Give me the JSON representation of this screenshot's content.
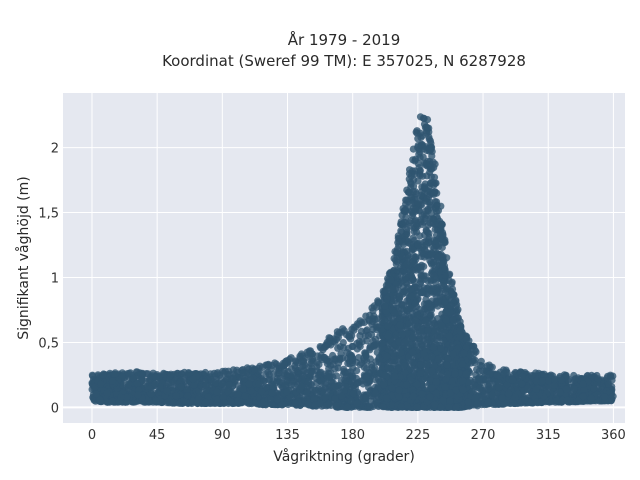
{
  "chart_data": {
    "type": "scatter",
    "title": "År 1979 - 2019",
    "subtitle": "Koordinat (Sweref 99 TM): E 357025, N 6287928",
    "xlabel": "Vågriktning (grader)",
    "ylabel": "Signifikant våghöjd (m)",
    "xlim": [
      -20,
      368
    ],
    "ylim": [
      -0.12,
      2.42
    ],
    "x_ticks": [
      0,
      45,
      90,
      135,
      180,
      225,
      270,
      315,
      360
    ],
    "x_tick_labels": [
      "0",
      "45",
      "90",
      "135",
      "180",
      "225",
      "270",
      "315",
      "360"
    ],
    "y_ticks": [
      0,
      0.5,
      1,
      1.5,
      2
    ],
    "y_tick_labels": [
      "0",
      "0,5",
      "1",
      "1,5",
      "2"
    ],
    "grid": true,
    "legend": "none",
    "point_color": "#2f5570",
    "plot_background": "#e5e8f0",
    "grid_color": "#ffffff",
    "envelope": {
      "description_points_direction_deg": [
        0,
        10,
        20,
        30,
        45,
        60,
        75,
        90,
        105,
        120,
        135,
        150,
        160,
        170,
        180,
        190,
        200,
        205,
        210,
        215,
        218,
        222,
        225,
        228,
        232,
        235,
        238,
        242,
        245,
        250,
        255,
        260,
        265,
        270,
        280,
        290,
        300,
        315,
        330,
        345,
        360
      ],
      "upper_height_m": [
        0.25,
        0.26,
        0.27,
        0.28,
        0.26,
        0.27,
        0.27,
        0.28,
        0.3,
        0.33,
        0.38,
        0.45,
        0.52,
        0.6,
        0.62,
        0.72,
        0.88,
        1.02,
        1.25,
        1.55,
        1.75,
        2.0,
        2.2,
        2.28,
        2.22,
        2.05,
        1.8,
        1.45,
        1.2,
        0.9,
        0.62,
        0.52,
        0.45,
        0.35,
        0.3,
        0.28,
        0.27,
        0.26,
        0.25,
        0.25,
        0.25
      ],
      "lower_height_m": [
        0.05,
        0.04,
        0.04,
        0.04,
        0.04,
        0.03,
        0.03,
        0.03,
        0.03,
        0.02,
        0.02,
        0.01,
        0.01,
        0.0,
        0.0,
        0.0,
        0.0,
        0.0,
        0.0,
        0.0,
        0.0,
        0.0,
        0.0,
        0.0,
        0.0,
        0.0,
        0.0,
        0.0,
        0.0,
        0.0,
        0.0,
        0.01,
        0.01,
        0.02,
        0.02,
        0.03,
        0.03,
        0.04,
        0.04,
        0.05,
        0.05
      ]
    }
  }
}
